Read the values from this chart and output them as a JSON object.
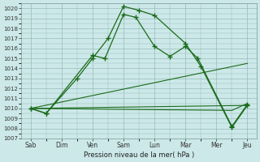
{
  "xlabel": "Pression niveau de la mer( hPa )",
  "ylim": [
    1007,
    1020.5
  ],
  "yticks": [
    1007,
    1008,
    1009,
    1010,
    1011,
    1012,
    1013,
    1014,
    1015,
    1016,
    1017,
    1018,
    1019,
    1020
  ],
  "xtick_labels": [
    "Sab",
    "Dim",
    "Ven",
    "Sam",
    "Lun",
    "Mar",
    "Mer",
    "Jeu"
  ],
  "bg_color": "#cce8e8",
  "grid_color": "#99bbbb",
  "line_color": "#1a6b1a",
  "line1_x": [
    0,
    0.5,
    2.0,
    2.4,
    3.0,
    3.4,
    4.0,
    4.5,
    5.0,
    5.4,
    6.5,
    7.0
  ],
  "line1_y": [
    1010.0,
    1009.5,
    1015.3,
    1015.0,
    1019.4,
    1019.1,
    1016.2,
    1015.2,
    1016.2,
    1015.0,
    1008.2,
    1010.4
  ],
  "line2_x": [
    0,
    0.5,
    1.5,
    2.0,
    2.5,
    3.0,
    3.5,
    4.0,
    5.0,
    5.5,
    6.5,
    7.0
  ],
  "line2_y": [
    1010.0,
    1009.5,
    1013.0,
    1015.0,
    1017.0,
    1020.2,
    1019.8,
    1019.3,
    1016.5,
    1014.2,
    1008.1,
    1010.3
  ],
  "line3_x": [
    0,
    7.0
  ],
  "line3_y": [
    1010.0,
    1014.5
  ],
  "line4_x": [
    0,
    7.0
  ],
  "line4_y": [
    1010.0,
    1010.3
  ],
  "line5_x": [
    0,
    6.5,
    7.0
  ],
  "line5_y": [
    1010.0,
    1009.8,
    1010.5
  ],
  "xlim": [
    -0.3,
    7.3
  ],
  "n_xticks": 8
}
